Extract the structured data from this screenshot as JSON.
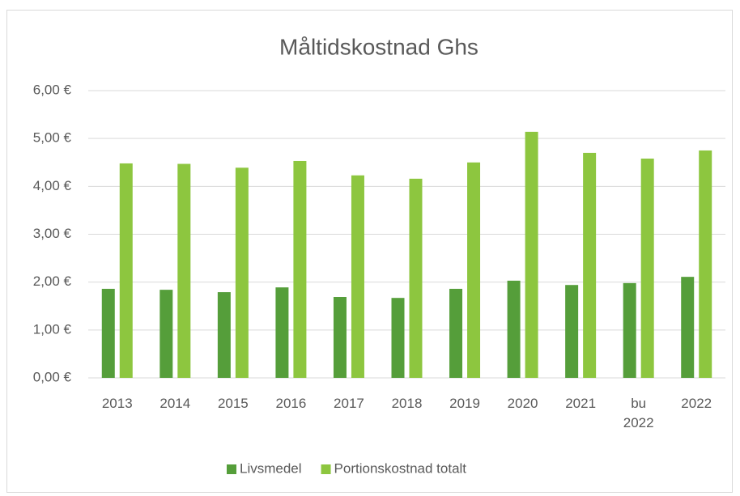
{
  "chart_data": {
    "type": "bar",
    "title": "Måltidskostnad Ghs",
    "categories": [
      "2013",
      "2014",
      "2015",
      "2016",
      "2017",
      "2018",
      "2019",
      "2020",
      "2021",
      "bu 2022",
      "2022"
    ],
    "series": [
      {
        "name": "Livsmedel",
        "color": "#559e3a",
        "values": [
          1.86,
          1.84,
          1.79,
          1.89,
          1.69,
          1.67,
          1.86,
          2.03,
          1.94,
          1.98,
          2.11
        ]
      },
      {
        "name": "Portionskostnad totalt",
        "color": "#8dc63f",
        "values": [
          4.48,
          4.47,
          4.39,
          4.53,
          4.23,
          4.16,
          4.5,
          5.14,
          4.7,
          4.58,
          4.75
        ]
      }
    ],
    "ylim": [
      0,
      6
    ],
    "yticks": [
      {
        "value": 0,
        "label": "0,00 €"
      },
      {
        "value": 1,
        "label": "1,00 €"
      },
      {
        "value": 2,
        "label": "2,00 €"
      },
      {
        "value": 3,
        "label": "3,00 €"
      },
      {
        "value": 4,
        "label": "4,00 €"
      },
      {
        "value": 5,
        "label": "5,00 €"
      },
      {
        "value": 6,
        "label": "6,00 €"
      }
    ],
    "grid": true,
    "legend": "bottom"
  }
}
